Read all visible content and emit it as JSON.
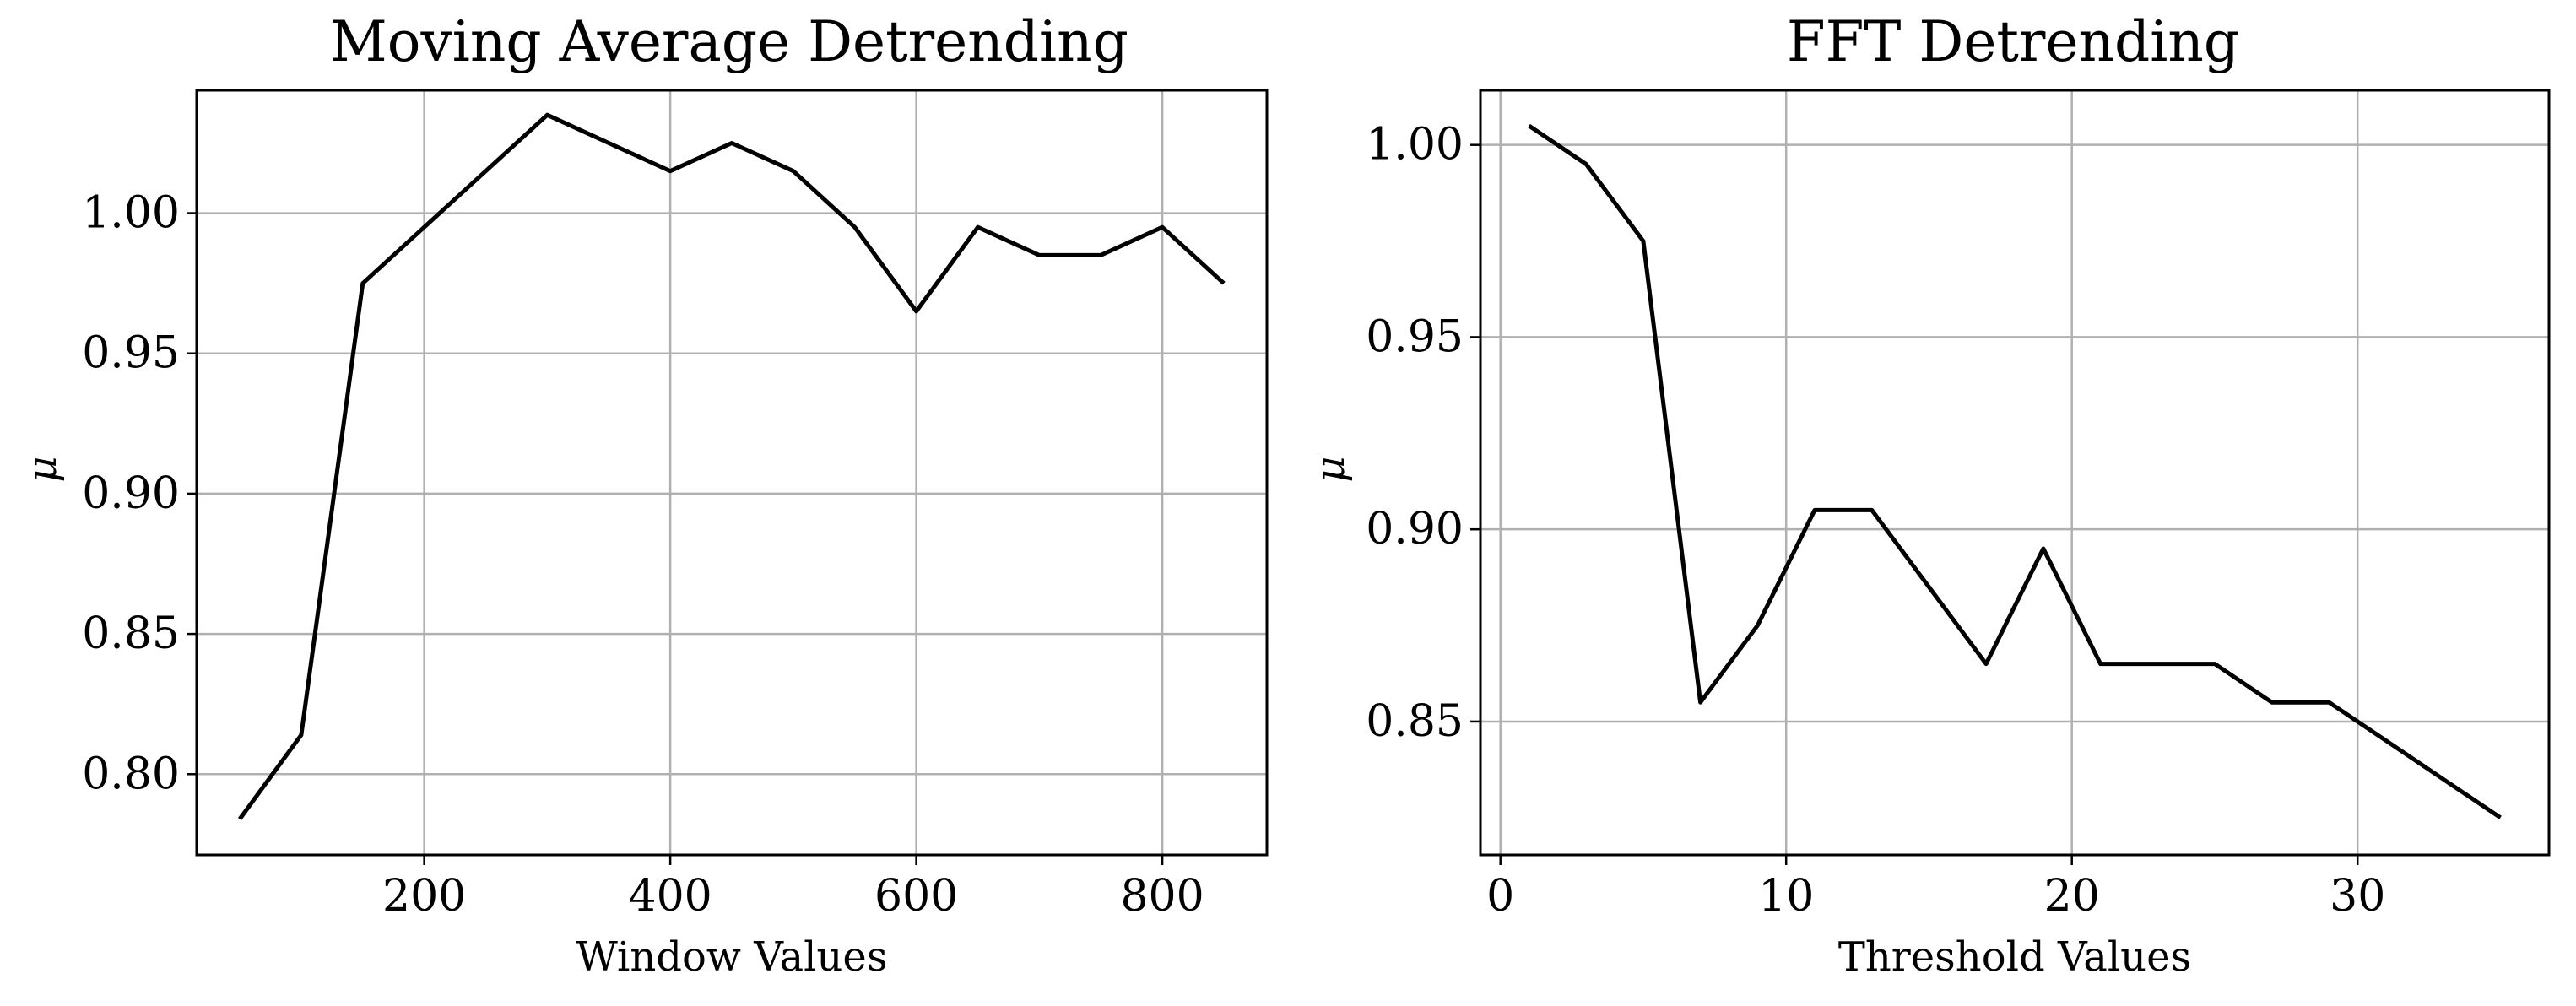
{
  "chart_data": [
    {
      "type": "line",
      "title": "Moving Average Detrending",
      "xlabel": "Window Values",
      "ylabel": "μ",
      "xlim": [
        15,
        885
      ],
      "ylim": [
        0.7712,
        1.0438
      ],
      "xticks": [
        200,
        400,
        600,
        800
      ],
      "xtick_labels": [
        "200",
        "400",
        "600",
        "800"
      ],
      "yticks": [
        0.8,
        0.85,
        0.9,
        0.95,
        1.0
      ],
      "ytick_labels": [
        "0.80",
        "0.85",
        "0.90",
        "0.95",
        "1.00"
      ],
      "grid": true,
      "line_color": "#000000",
      "x": [
        50,
        100,
        150,
        200,
        250,
        300,
        350,
        400,
        450,
        500,
        550,
        600,
        650,
        700,
        750,
        800,
        850
      ],
      "y": [
        0.784,
        0.814,
        0.975,
        0.995,
        1.015,
        1.035,
        1.025,
        1.015,
        1.025,
        1.015,
        0.995,
        0.965,
        0.995,
        0.985,
        0.985,
        0.995,
        0.975
      ]
    },
    {
      "type": "line",
      "title": "FFT Detrending",
      "xlabel": "Threshold Values",
      "ylabel": "μ",
      "xlim": [
        -0.7,
        36.7
      ],
      "ylim": [
        0.8153,
        1.0142
      ],
      "xticks": [
        0,
        10,
        20,
        30
      ],
      "xtick_labels": [
        "0",
        "10",
        "20",
        "30"
      ],
      "yticks": [
        0.85,
        0.9,
        0.95,
        1.0
      ],
      "ytick_labels": [
        "0.85",
        "0.90",
        "0.95",
        "1.00"
      ],
      "grid": true,
      "line_color": "#000000",
      "x": [
        1,
        3,
        5,
        7,
        9,
        11,
        13,
        15,
        17,
        19,
        21,
        23,
        25,
        27,
        29,
        31,
        33,
        35
      ],
      "y": [
        1.005,
        0.995,
        0.975,
        0.855,
        0.875,
        0.905,
        0.905,
        0.885,
        0.865,
        0.895,
        0.865,
        0.865,
        0.865,
        0.855,
        0.855,
        0.845,
        0.835,
        0.825
      ]
    }
  ]
}
